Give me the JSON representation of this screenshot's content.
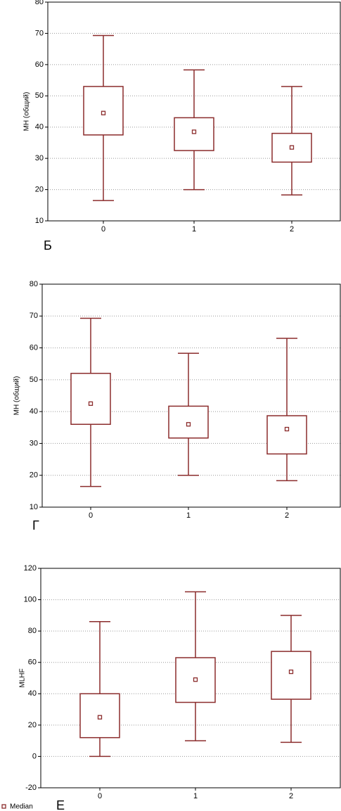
{
  "chart_data": [
    {
      "type": "box",
      "y_label": "МН (общий)",
      "panel": "Б",
      "categories": [
        "0",
        "1",
        "2"
      ],
      "color": "#8b2c2c",
      "grid": true,
      "ylim": [
        10,
        80
      ],
      "yticks": [
        10,
        20,
        30,
        40,
        50,
        60,
        70,
        80
      ],
      "boxes": [
        {
          "min": 16.5,
          "q1": 37.5,
          "median": 44.5,
          "q3": 53,
          "max": 69.3
        },
        {
          "min": 20,
          "q1": 32.5,
          "median": 38.5,
          "q3": 43,
          "max": 58.3
        },
        {
          "min": 18.3,
          "q1": 28.8,
          "median": 33.5,
          "q3": 38,
          "max": 53
        }
      ]
    },
    {
      "type": "box",
      "y_label": "МН (общий)",
      "panel": "Г",
      "categories": [
        "0",
        "1",
        "2"
      ],
      "color": "#8b2c2c",
      "grid": true,
      "ylim": [
        10,
        80
      ],
      "yticks": [
        10,
        20,
        30,
        40,
        50,
        60,
        70,
        80
      ],
      "boxes": [
        {
          "min": 16.5,
          "q1": 36,
          "median": 42.5,
          "q3": 52,
          "max": 69.3
        },
        {
          "min": 20,
          "q1": 31.7,
          "median": 36,
          "q3": 41.7,
          "max": 58.3
        },
        {
          "min": 18.3,
          "q1": 26.7,
          "median": 34.5,
          "q3": 38.7,
          "max": 63
        }
      ]
    },
    {
      "type": "box",
      "y_label": "MLHF",
      "panel": "Е",
      "legend": "Median",
      "categories": [
        "0",
        "1",
        "2"
      ],
      "color": "#8b2c2c",
      "grid": true,
      "ylim": [
        -20,
        120
      ],
      "yticks": [
        -20,
        0,
        20,
        40,
        60,
        80,
        100,
        120
      ],
      "boxes": [
        {
          "min": 0,
          "q1": 12,
          "median": 25,
          "q3": 40,
          "max": 86
        },
        {
          "min": 10,
          "q1": 34.5,
          "median": 49,
          "q3": 63,
          "max": 105
        },
        {
          "min": 9,
          "q1": 36.5,
          "median": 54,
          "q3": 67,
          "max": 90
        }
      ]
    }
  ]
}
